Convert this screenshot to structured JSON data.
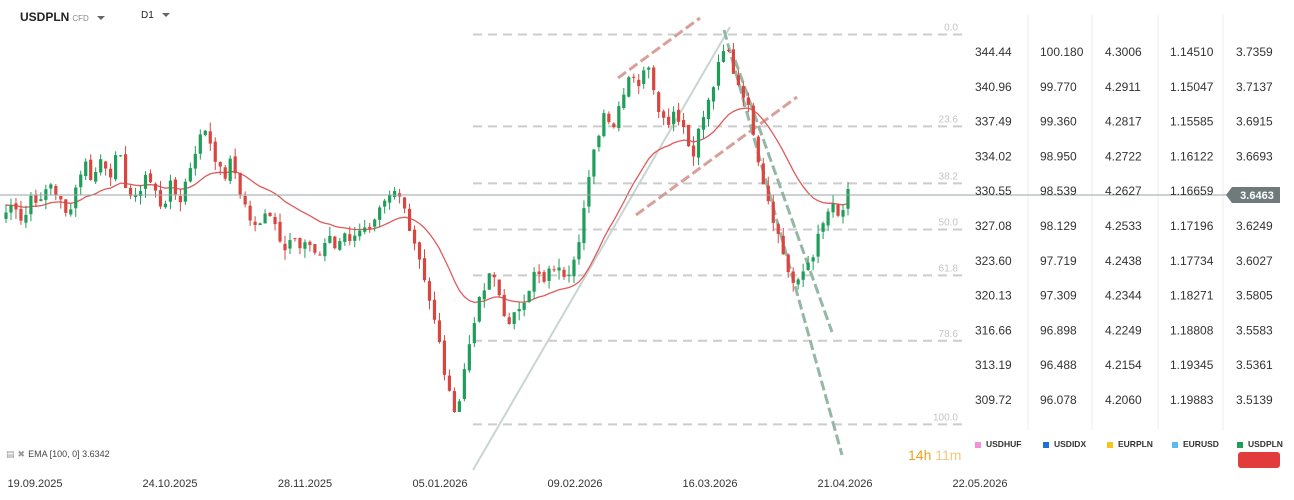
{
  "header": {
    "symbol": "USDPLN",
    "symbol_type": "CFD",
    "timeframe": "D1"
  },
  "indicator": {
    "label": "EMA [100, 0] 3.6342"
  },
  "timer": {
    "hours": "14h",
    "minutes": "11m"
  },
  "price_columns": [
    [
      "344.44",
      "340.96",
      "337.49",
      "334.02",
      "330.55",
      "327.08",
      "323.60",
      "320.13",
      "316.66",
      "313.19",
      "309.72"
    ],
    [
      "100.180",
      "99.770",
      "99.360",
      "98.950",
      "98.539",
      "98.129",
      "97.719",
      "97.309",
      "96.898",
      "96.488",
      "96.078"
    ],
    [
      "4.3006",
      "4.2911",
      "4.2817",
      "4.2722",
      "4.2627",
      "4.2533",
      "4.2438",
      "4.2344",
      "4.2249",
      "4.2154",
      "4.2060"
    ],
    [
      "1.14510",
      "1.15047",
      "1.15585",
      "1.16122",
      "1.16659",
      "1.17196",
      "1.17734",
      "1.18271",
      "1.18808",
      "1.19345",
      "1.19883"
    ],
    [
      "3.7359",
      "3.7137",
      "3.6915",
      "3.6693",
      "3.6463",
      "3.6249",
      "3.6027",
      "3.5805",
      "3.5583",
      "3.5361",
      "3.5139"
    ]
  ],
  "current_price": "3.6463",
  "legend": [
    {
      "name": "USDHUF",
      "color": "#f48fd6"
    },
    {
      "name": "USDIDX",
      "color": "#1e6fd9"
    },
    {
      "name": "EURPLN",
      "color": "#f5c518"
    },
    {
      "name": "EURUSD",
      "color": "#5bb8f0"
    },
    {
      "name": "USDPLN",
      "color": "#1f9e5a"
    }
  ],
  "chart_data": {
    "type": "candlestick",
    "y_axis_units": "USDPLN",
    "x_ticks": [
      "19.09.2025",
      "24.10.2025",
      "28.11.2025",
      "05.01.2026",
      "09.02.2026",
      "16.03.2026",
      "21.04.2026",
      "22.05.2026"
    ],
    "fib_levels": [
      {
        "label": "0.0",
        "price": 3.7469
      },
      {
        "label": "23.6",
        "price": 3.6891
      },
      {
        "label": "38.2",
        "price": 3.6533
      },
      {
        "label": "50.0",
        "price": 3.6243
      },
      {
        "label": "61.8",
        "price": 3.5954
      },
      {
        "label": "78.6",
        "price": 3.5543
      },
      {
        "label": "100.0",
        "price": 3.5017
      }
    ],
    "ema_100_last": 3.6342,
    "colors": {
      "up": "#1f9e5a",
      "down": "#d9463f",
      "ema": "#e05a5a",
      "fib": "#cccccc"
    },
    "price_path": [
      3.635,
      3.642,
      3.628,
      3.648,
      3.64,
      3.655,
      3.645,
      3.632,
      3.65,
      3.668,
      3.655,
      3.67,
      3.66,
      3.672,
      3.648,
      3.642,
      3.66,
      3.65,
      3.638,
      3.652,
      3.642,
      3.66,
      3.678,
      3.688,
      3.672,
      3.655,
      3.668,
      3.648,
      3.632,
      3.622,
      3.64,
      3.628,
      3.614,
      3.62,
      3.61,
      3.616,
      3.606,
      3.62,
      3.612,
      3.624,
      3.616,
      3.63,
      3.622,
      3.634,
      3.642,
      3.648,
      3.636,
      3.618,
      3.6,
      3.575,
      3.55,
      3.52,
      3.51,
      3.542,
      3.57,
      3.585,
      3.598,
      3.58,
      3.562,
      3.575,
      3.585,
      3.598,
      3.59,
      3.602,
      3.596,
      3.6,
      3.62,
      3.65,
      3.68,
      3.7,
      3.69,
      3.71,
      3.725,
      3.715,
      3.73,
      3.705,
      3.69,
      3.7,
      3.69,
      3.67,
      3.69,
      3.705,
      3.725,
      3.74,
      3.72,
      3.71,
      3.69,
      3.66,
      3.64,
      3.62,
      3.6,
      3.586,
      3.6,
      3.61,
      3.625,
      3.64,
      3.63,
      3.646
    ]
  }
}
